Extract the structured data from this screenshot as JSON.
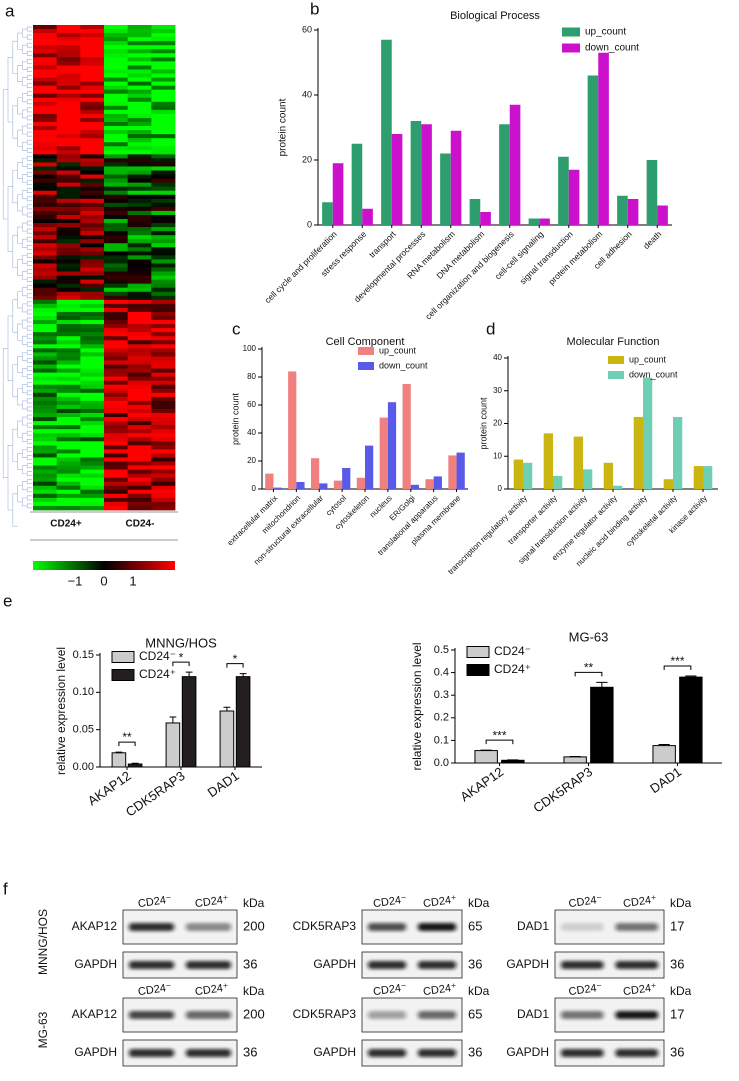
{
  "panel_labels": [
    "a",
    "b",
    "c",
    "d",
    "e",
    "f"
  ],
  "heatmap": {
    "column_labels": [
      "CD24+",
      "CD24-"
    ],
    "colorbar_ticks": [
      {
        "value": -1,
        "label": "−1"
      },
      0,
      1
    ]
  },
  "chart_data": [
    {
      "type": "bar",
      "title": "Biological Process",
      "y_label": "protein count",
      "legend": "top-right",
      "categories": [
        "cell cycle and proliferation",
        "stress response",
        "transport",
        "developmental processes",
        "RNA metabolism",
        "DNA metabolism",
        "cell organization and biogenesis",
        "cell-cell signaling",
        "signal transduction",
        "protein metabolism",
        "cell adhesion",
        "death"
      ],
      "series": [
        {
          "name": "up_count",
          "color": "#2f9e6e",
          "values": [
            7,
            25,
            57,
            32,
            22,
            8,
            31,
            2,
            21,
            46,
            9,
            20
          ]
        },
        {
          "name": "down_count",
          "color": "#cc11cc",
          "values": [
            19,
            5,
            28,
            31,
            29,
            4,
            37,
            2,
            17,
            53,
            8,
            6
          ]
        }
      ],
      "ylim": [
        0,
        60
      ],
      "yticks": [
        0,
        20,
        40,
        60
      ]
    },
    {
      "type": "bar",
      "title": "Cell Component",
      "y_label": "protein count",
      "legend": "top-right",
      "categories": [
        "extracellular matrix",
        "mitochondrion",
        "non-structural extracellular",
        "cytosol",
        "cytoskeleton",
        "nucleus",
        "ER/Golgi",
        "translational apparatus",
        "plasma membrane"
      ],
      "series": [
        {
          "name": "up_count",
          "color": "#f08080",
          "values": [
            11,
            84,
            22,
            6,
            8,
            51,
            75,
            7,
            24
          ]
        },
        {
          "name": "down_count",
          "color": "#5a5ae8",
          "values": [
            1,
            5,
            4,
            15,
            31,
            62,
            3,
            9,
            26
          ]
        }
      ],
      "ylim": [
        0,
        100
      ],
      "yticks": [
        0,
        20,
        40,
        60,
        80,
        100
      ]
    },
    {
      "type": "bar",
      "title": "Molecular Function",
      "y_label": "protein count",
      "legend": "top-right",
      "categories": [
        "transcription regulatory activity",
        "transporter activity",
        "signal transduction activity",
        "enzyme regulator activity",
        "nucleic acid binding activity",
        "cytoskeletal activity",
        "kinase activity"
      ],
      "series": [
        {
          "name": "up_count",
          "color": "#cbb511",
          "values": [
            9,
            17,
            16,
            8,
            22,
            3,
            7
          ]
        },
        {
          "name": "down_count",
          "color": "#6fcfb4",
          "values": [
            8,
            4,
            6,
            1,
            34,
            22,
            7
          ]
        }
      ],
      "ylim": [
        0,
        40
      ],
      "yticks": [
        0,
        10,
        20,
        30,
        40
      ]
    },
    {
      "type": "bar",
      "title": "MNNG/HOS",
      "y_label": "relative expression level",
      "legend": "top-left",
      "categories": [
        "AKAP12",
        "CDK5RAP3",
        "DAD1"
      ],
      "series": [
        {
          "name": "CD24⁻",
          "color": "#cccccc",
          "values": [
            0.019,
            0.059,
            0.075
          ],
          "errors": [
            0.001,
            0.008,
            0.005
          ]
        },
        {
          "name": "CD24⁺",
          "color": "#231f20",
          "values": [
            0.004,
            0.121,
            0.121
          ],
          "errors": [
            0.001,
            0.006,
            0.004
          ]
        }
      ],
      "annotations": [
        "**",
        "*",
        "*"
      ],
      "ylim": [
        0,
        0.15
      ],
      "yticks": [
        {
          "value": 0,
          "label": "0.00"
        },
        {
          "value": 0.05,
          "label": "0.05"
        },
        {
          "value": 0.1,
          "label": "0.10"
        },
        {
          "value": 0.15,
          "label": "0.15"
        }
      ]
    },
    {
      "type": "bar",
      "title": "MG-63",
      "y_label": "relative expression level",
      "legend": "top-left",
      "categories": [
        "AKAP12",
        "CDK5RAP3",
        "DAD1"
      ],
      "series": [
        {
          "name": "CD24⁻",
          "color": "#cccccc",
          "values": [
            0.055,
            0.027,
            0.077
          ],
          "errors": [
            0.002,
            0.002,
            0.005
          ]
        },
        {
          "name": "CD24⁺",
          "color": "#000000",
          "values": [
            0.012,
            0.335,
            0.38
          ],
          "errors": [
            0.002,
            0.022,
            0.005
          ]
        }
      ],
      "annotations": [
        "***",
        "**",
        "***"
      ],
      "ylim": [
        0,
        0.5
      ],
      "yticks": [
        {
          "value": 0,
          "label": "0.0"
        },
        0.1,
        0.2,
        0.3,
        0.4,
        0.5
      ]
    }
  ],
  "blots": {
    "unit": "kDa",
    "column_labels": [
      "CD24⁻",
      "CD24⁺"
    ],
    "rows": [
      {
        "cell_line": "MNNG/HOS",
        "panels": [
          {
            "protein": "AKAP12",
            "size": 200,
            "control": "GAPDH",
            "control_size": 36
          },
          {
            "protein": "CDK5RAP3",
            "size": 65,
            "control": "GAPDH",
            "control_size": 36
          },
          {
            "protein": "DAD1",
            "size": 17,
            "control": "GAPDH",
            "control_size": 36
          }
        ]
      },
      {
        "cell_line": "MG-63",
        "panels": [
          {
            "protein": "AKAP12",
            "size": 200,
            "control": "GAPDH",
            "control_size": 36
          },
          {
            "protein": "CDK5RAP3",
            "size": 65,
            "control": "GAPDH",
            "control_size": 36
          },
          {
            "protein": "DAD1",
            "size": 17,
            "control": "GAPDH",
            "control_size": 36
          }
        ]
      }
    ]
  }
}
